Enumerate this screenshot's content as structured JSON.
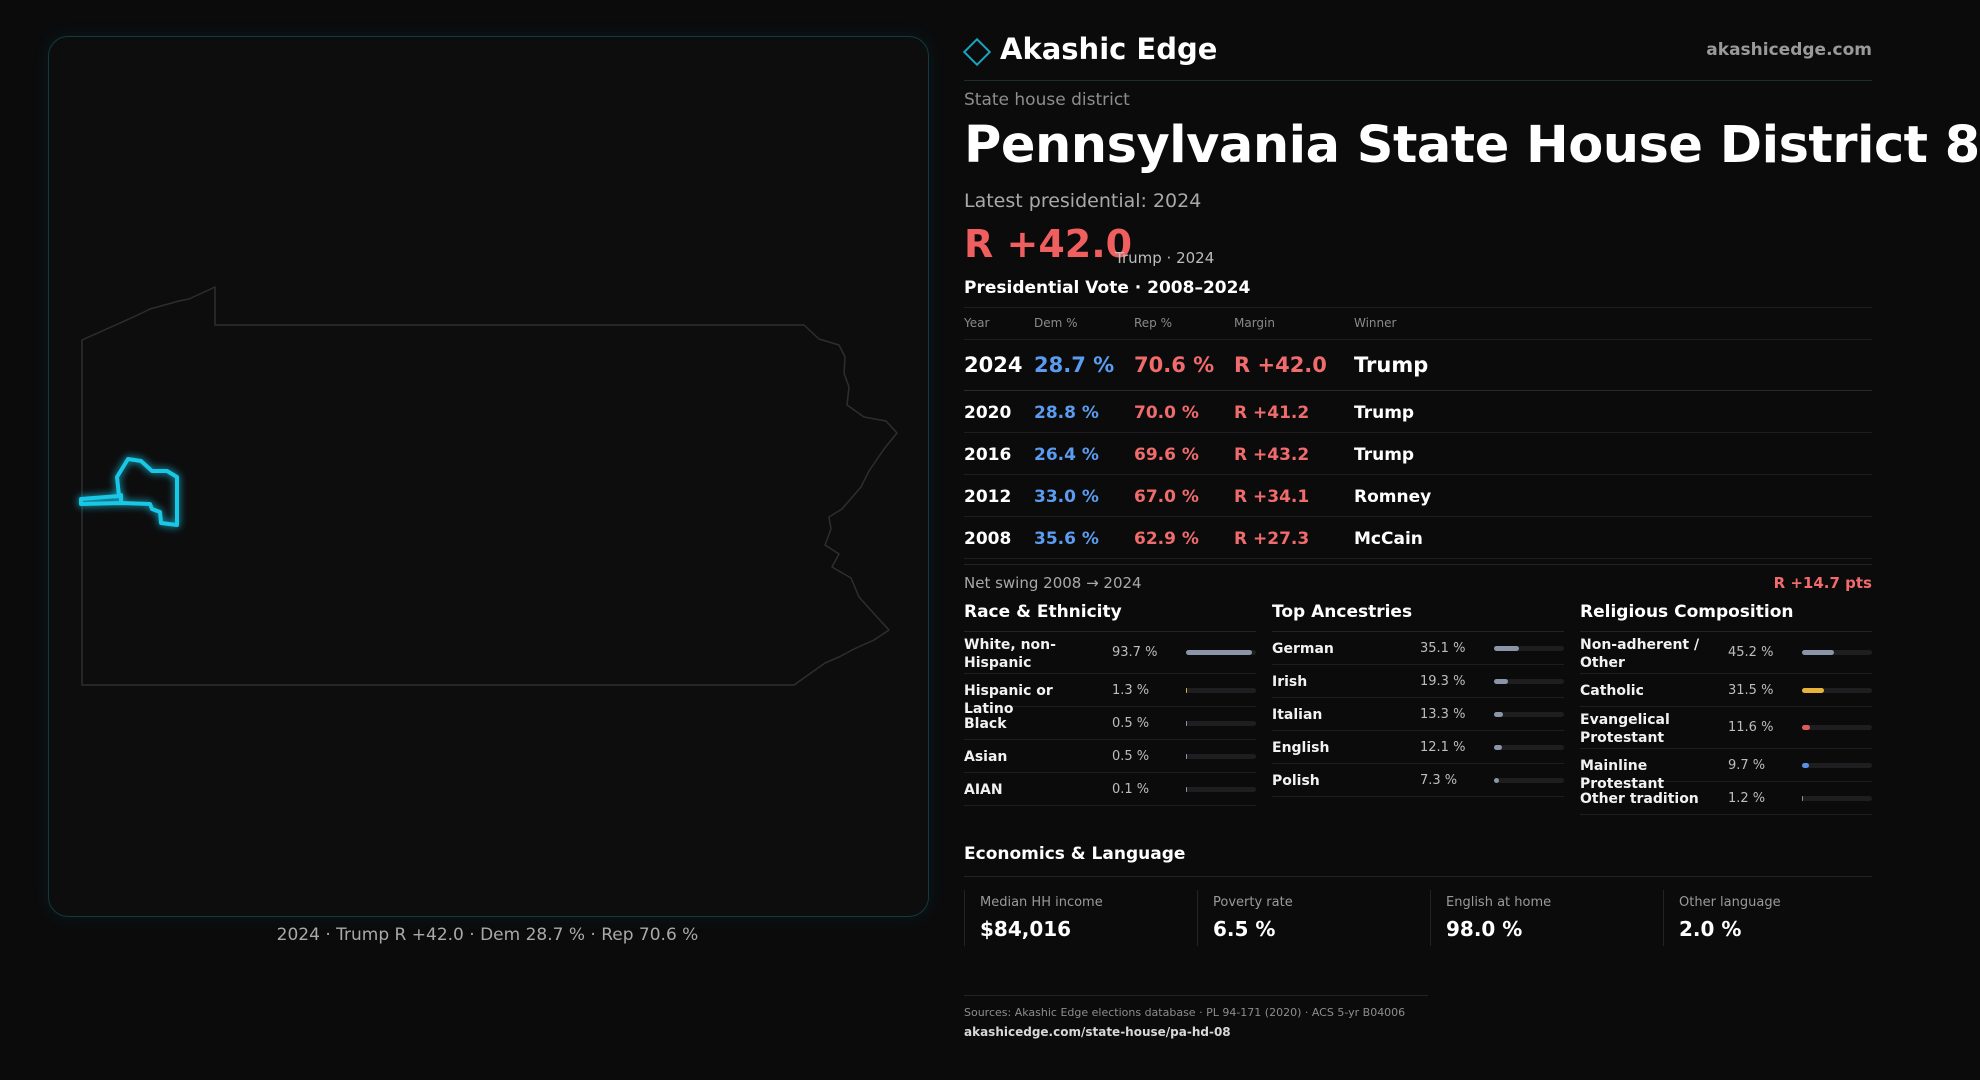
{
  "map": {
    "caption": "2024 · Trump R +42.0 · Dem 28.7 % · Rep 70.6 %",
    "state_outline_color": "#2e2e30",
    "district_color": "#18c8e6"
  },
  "brand": {
    "name": "Akashic Edge",
    "url": "akashicedge.com",
    "icon": "diamond-logo-icon",
    "accent": "#17a5c2"
  },
  "district": {
    "kicker": "State house district",
    "title": "Pennsylvania State House District 8",
    "latest_label": "Latest presidential: 2024",
    "margin": "R +42.0",
    "margin_sub": "Trump · 2024"
  },
  "presidential": {
    "title": "Presidential Vote · 2008–2024",
    "headers": {
      "year": "Year",
      "dem": "Dem %",
      "rep": "Rep %",
      "margin": "Margin",
      "winner": "Winner"
    },
    "rows": [
      {
        "year": "2024",
        "dem": "28.7 %",
        "rep": "70.6 %",
        "margin": "R +42.0",
        "winner": "Trump"
      },
      {
        "year": "2020",
        "dem": "28.8 %",
        "rep": "70.0 %",
        "margin": "R +41.2",
        "winner": "Trump"
      },
      {
        "year": "2016",
        "dem": "26.4 %",
        "rep": "69.6 %",
        "margin": "R +43.2",
        "winner": "Trump"
      },
      {
        "year": "2012",
        "dem": "33.0 %",
        "rep": "67.0 %",
        "margin": "R +34.1",
        "winner": "Romney"
      },
      {
        "year": "2008",
        "dem": "35.6 %",
        "rep": "62.9 %",
        "margin": "R +27.3",
        "winner": "McCain"
      }
    ],
    "swing_label": "Net swing 2008 → 2024",
    "swing_value": "R +14.7 pts",
    "colors": {
      "dem": "#5b9cf0",
      "rep": "#f06b6b"
    }
  },
  "race": {
    "title": "Race & Ethnicity",
    "rows": [
      {
        "label": "White, non-Hispanic",
        "pct": "93.7 %",
        "share": 0.937,
        "color": "#8a96a8"
      },
      {
        "label": "Hispanic or Latino",
        "pct": "1.3 %",
        "share": 0.013,
        "color": "#d9b23a"
      },
      {
        "label": "Black",
        "pct": "0.5 %",
        "share": 0.005,
        "color": "#8a96a8"
      },
      {
        "label": "Asian",
        "pct": "0.5 %",
        "share": 0.005,
        "color": "#8a96a8"
      },
      {
        "label": "AIAN",
        "pct": "0.1 %",
        "share": 0.001,
        "color": "#8a96a8"
      }
    ]
  },
  "ancestry": {
    "title": "Top Ancestries",
    "rows": [
      {
        "label": "German",
        "pct": "35.1 %",
        "share": 0.351,
        "color": "#8a96a8"
      },
      {
        "label": "Irish",
        "pct": "19.3 %",
        "share": 0.193,
        "color": "#8a96a8"
      },
      {
        "label": "Italian",
        "pct": "13.3 %",
        "share": 0.133,
        "color": "#8a96a8"
      },
      {
        "label": "English",
        "pct": "12.1 %",
        "share": 0.121,
        "color": "#8a96a8"
      },
      {
        "label": "Polish",
        "pct": "7.3 %",
        "share": 0.073,
        "color": "#8a96a8"
      }
    ]
  },
  "religion": {
    "title": "Religious Composition",
    "rows": [
      {
        "label": "Non-adherent / Other",
        "pct": "45.2 %",
        "share": 0.452,
        "color": "#8a96a8"
      },
      {
        "label": "Catholic",
        "pct": "31.5 %",
        "share": 0.315,
        "color": "#e6b43a"
      },
      {
        "label": "Evangelical Protestant",
        "pct": "11.6 %",
        "share": 0.116,
        "color": "#e05a5a"
      },
      {
        "label": "Mainline Protestant",
        "pct": "9.7 %",
        "share": 0.097,
        "color": "#5b8ee6"
      },
      {
        "label": "Other tradition",
        "pct": "1.2 %",
        "share": 0.012,
        "color": "#8a96a8"
      }
    ]
  },
  "economics": {
    "title": "Economics & Language",
    "cells": [
      {
        "label": "Median HH income",
        "value": "$84,016"
      },
      {
        "label": "Poverty rate",
        "value": "6.5 %"
      },
      {
        "label": "English at home",
        "value": "98.0 %"
      },
      {
        "label": "Other language",
        "value": "2.0 %"
      }
    ]
  },
  "footer": {
    "sources": "Sources: Akashic Edge elections database · PL 94-171 (2020) · ACS 5-yr B04006",
    "url": "akashicedge.com/state-house/pa-hd-08"
  }
}
